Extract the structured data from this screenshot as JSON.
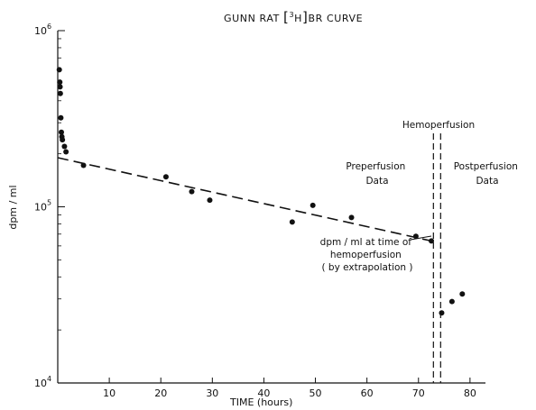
{
  "chart_data": {
    "type": "scatter",
    "title": {
      "pre": "GUNN RAT ",
      "bracket_open": "[",
      "superscript": "3",
      "isotope": "H",
      "bracket_close": "]",
      "post": "BR CURVE"
    },
    "xlabel": "TIME (hours)",
    "ylabel": "dpm / ml",
    "x_axis": {
      "min": 0,
      "max": 83,
      "ticks": [
        10,
        20,
        30,
        40,
        50,
        60,
        70,
        80
      ],
      "tick_labels": [
        "10",
        "20",
        "30",
        "40",
        "50",
        "60",
        "70",
        "80"
      ]
    },
    "y_axis": {
      "scale": "log",
      "min": 10000,
      "max": 1000000,
      "ticks": [
        {
          "value": 10000,
          "base": "10",
          "exp": "4"
        },
        {
          "value": 100000,
          "base": "10",
          "exp": "5"
        },
        {
          "value": 1000000,
          "base": "10",
          "exp": "6"
        }
      ]
    },
    "grid": false,
    "series": [
      {
        "role": "preperfusion",
        "points": [
          [
            0.3,
            600000
          ],
          [
            0.4,
            510000
          ],
          [
            0.45,
            480000
          ],
          [
            0.5,
            440000
          ],
          [
            0.6,
            320000
          ],
          [
            0.7,
            265000
          ],
          [
            0.8,
            250000
          ],
          [
            0.9,
            240000
          ],
          [
            1.3,
            220000
          ],
          [
            1.6,
            205000
          ],
          [
            5,
            172000
          ],
          [
            21,
            148000
          ],
          [
            26,
            122000
          ],
          [
            29.5,
            109000
          ],
          [
            45.5,
            82000
          ],
          [
            49.5,
            102000
          ],
          [
            57,
            87000
          ],
          [
            69.5,
            68000
          ],
          [
            72.5,
            64000
          ]
        ]
      },
      {
        "role": "postperfusion",
        "points": [
          [
            74.5,
            25000
          ],
          [
            76.5,
            29000
          ],
          [
            78.5,
            32000
          ]
        ]
      }
    ],
    "fit_line": {
      "style": "dashed",
      "points": [
        [
          0,
          190000
        ],
        [
          72.5,
          64000
        ]
      ]
    },
    "hemoperfusion_lines": [
      72.9,
      74.3
    ],
    "annotations": {
      "hemoperfusion": "Hemoperfusion",
      "preperfusion": [
        "Preperfusion",
        "Data"
      ],
      "postperfusion": [
        "Postperfusion",
        "Data"
      ],
      "extrapolation": [
        "dpm / ml  at time of",
        "hemoperfusion",
        "( by extrapolation )"
      ]
    }
  }
}
